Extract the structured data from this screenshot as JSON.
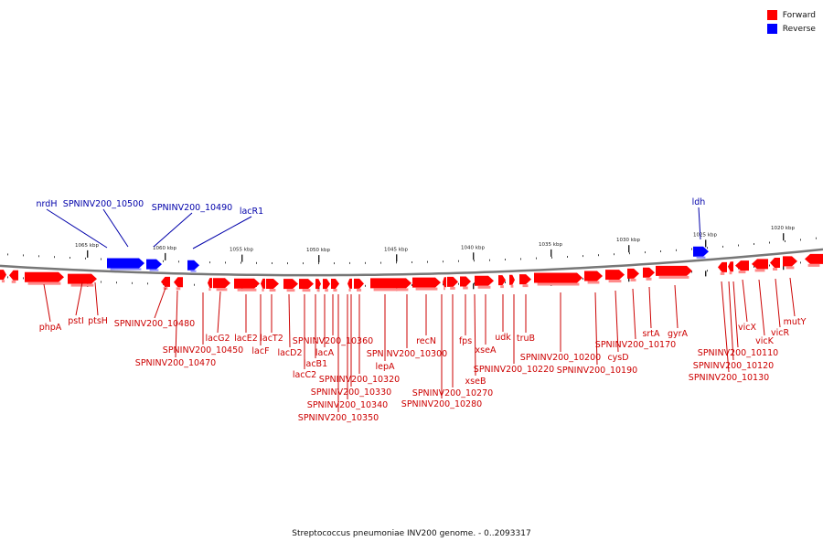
{
  "caption": "Streptococcus pneumoniae INV200 genome. - 0..2093317",
  "legend": [
    {
      "label": "Forward",
      "color": "#ff0000"
    },
    {
      "label": "Reverse",
      "color": "#0000ff"
    }
  ],
  "ticks": [
    "1065 kbp",
    "1060 kbp",
    "1055 kbp",
    "1050 kbp",
    "1045 kbp",
    "1040 kbp",
    "1035 kbp",
    "1030 kbp",
    "1025 kbp",
    "1020 kbp"
  ],
  "reverse_labels": [
    "nrdH",
    "SPNINV200_10500",
    "SPNINV200_10490",
    "lacR1",
    "ldh"
  ],
  "forward_labels": [
    "phpA",
    "pstI",
    "ptsH",
    "SPNINV200_10480",
    "SPNINV200_10470",
    "SPNINV200_10450",
    "lacG2",
    "lacE2",
    "lacF",
    "lacT2",
    "lacD2",
    "lacC2",
    "lacB1",
    "lacA",
    "SPNINV200_10360",
    "SPNINV200_10350",
    "SPNINV200_10340",
    "SPNINV200_10330",
    "SPNINV200_10320",
    "lepA",
    "SPNINV200_10300",
    "recN",
    "SPNINV200_10280",
    "SPNINV200_10270",
    "fps",
    "xseB",
    "xseA",
    "udk",
    "SPNINV200_10220",
    "truB",
    "SPNINV200_10200",
    "SPNINV200_10190",
    "cysD",
    "SPNINV200_10170",
    "srtA",
    "gyrA",
    "SPNINV200_10130",
    "SPNINV200_10120",
    "SPNINV200_10110",
    "vicX",
    "vicK",
    "vicR",
    "mutY"
  ]
}
